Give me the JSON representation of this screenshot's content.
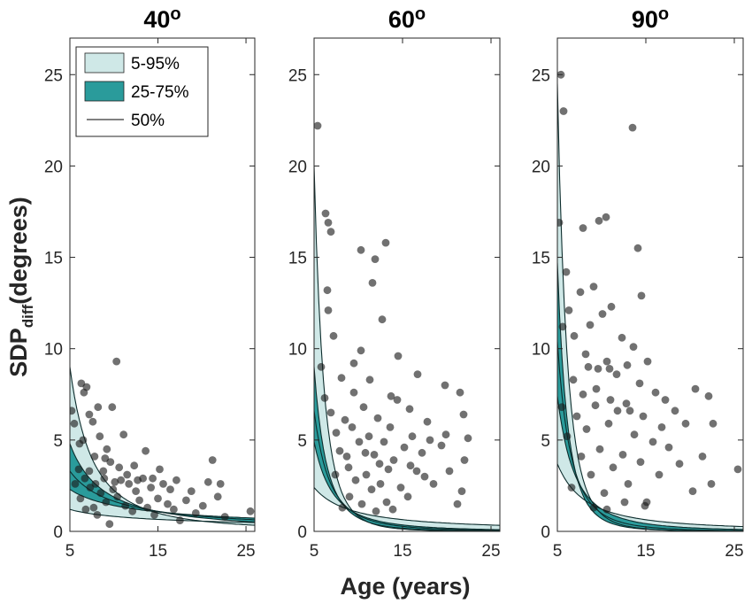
{
  "chart_data": {
    "type": "scatter",
    "xlabel": "Age (years)",
    "ylabel_main": "SDP",
    "ylabel_sub": "diff",
    "ylabel_rest": "(degrees)",
    "xlim": [
      5,
      26
    ],
    "ylim": [
      0,
      27
    ],
    "xticks": [
      5,
      15,
      25
    ],
    "yticks": [
      0,
      5,
      10,
      15,
      20,
      25
    ],
    "colors": {
      "band_outer": "#cfe8e7",
      "band_inner": "#2a9b9b",
      "median": "#0d2d2d",
      "points": "#1a1a1a"
    },
    "legend": {
      "position": "top-left of first panel",
      "entries": [
        {
          "label": "5-95%",
          "kind": "band_outer"
        },
        {
          "label": "25-75%",
          "kind": "band_inner"
        },
        {
          "label": "50%",
          "kind": "line"
        }
      ]
    },
    "panels": [
      {
        "title": "40°",
        "title_main": "40",
        "title_sup": "o",
        "curves": {
          "p5": [
            1.2,
            0.55
          ],
          "p25": [
            2.3,
            0.7
          ],
          "p50": [
            3.3,
            1.0
          ],
          "p75": [
            4.8,
            1.35
          ],
          "p95": [
            9.0,
            2.0
          ]
        },
        "points": [
          [
            5.2,
            6.6
          ],
          [
            5.5,
            5.9
          ],
          [
            6.3,
            8.1
          ],
          [
            6.6,
            7.6
          ],
          [
            6.9,
            7.9
          ],
          [
            7.2,
            6.4
          ],
          [
            7.6,
            6.0
          ],
          [
            8.2,
            6.8
          ],
          [
            9.0,
            4.0
          ],
          [
            9.8,
            6.8
          ],
          [
            10.3,
            9.3
          ],
          [
            11.1,
            5.3
          ],
          [
            6.1,
            4.8
          ],
          [
            6.5,
            5.0
          ],
          [
            7.2,
            3.3
          ],
          [
            7.8,
            4.1
          ],
          [
            8.4,
            5.2
          ],
          [
            9.2,
            4.5
          ],
          [
            9.6,
            3.8
          ],
          [
            10.6,
            3.5
          ],
          [
            12.3,
            3.6
          ],
          [
            13.6,
            4.4
          ],
          [
            15.2,
            3.4
          ],
          [
            17.1,
            2.8
          ],
          [
            20.7,
            2.7
          ],
          [
            21.2,
            3.9
          ],
          [
            22.1,
            2.6
          ],
          [
            5.6,
            2.6
          ],
          [
            6.2,
            1.8
          ],
          [
            6.8,
            1.2
          ],
          [
            7.3,
            2.4
          ],
          [
            7.7,
            1.3
          ],
          [
            8.1,
            0.9
          ],
          [
            8.5,
            2.1
          ],
          [
            8.9,
            2.9
          ],
          [
            9.1,
            1.6
          ],
          [
            9.5,
            0.4
          ],
          [
            9.9,
            2.3
          ],
          [
            10.4,
            1.9
          ],
          [
            10.8,
            2.8
          ],
          [
            11.3,
            1.4
          ],
          [
            11.7,
            2.6
          ],
          [
            12.1,
            1.1
          ],
          [
            12.5,
            2.2
          ],
          [
            12.9,
            1.7
          ],
          [
            13.3,
            2.9
          ],
          [
            13.8,
            1.3
          ],
          [
            14.2,
            2.4
          ],
          [
            14.6,
            0.9
          ],
          [
            15.0,
            1.8
          ],
          [
            15.6,
            2.6
          ],
          [
            16.1,
            1.5
          ],
          [
            16.8,
            1.2
          ],
          [
            17.5,
            0.6
          ],
          [
            18.2,
            1.7
          ],
          [
            19.3,
            1.0
          ],
          [
            20.1,
            1.4
          ],
          [
            21.8,
            1.9
          ],
          [
            22.6,
            0.8
          ],
          [
            25.5,
            1.1
          ],
          [
            6.0,
            3.4
          ],
          [
            6.7,
            2.9
          ],
          [
            7.9,
            2.6
          ],
          [
            8.8,
            3.3
          ],
          [
            10.1,
            2.7
          ],
          [
            11.5,
            3.1
          ],
          [
            12.7,
            2.8
          ],
          [
            14.4,
            2.9
          ],
          [
            16.4,
            2.3
          ],
          [
            18.8,
            2.2
          ]
        ]
      },
      {
        "title": "60°",
        "title_main": "60",
        "title_sup": "o",
        "curves": {
          "p5": [
            2.4,
            1.2
          ],
          "p25": [
            4.9,
            2.4
          ],
          "p50": [
            6.6,
            2.9
          ],
          "p75": [
            9.0,
            3.6
          ],
          "p95": [
            20.0,
            4.6
          ]
        },
        "points": [
          [
            5.4,
            22.2
          ],
          [
            6.3,
            17.4
          ],
          [
            6.6,
            16.9
          ],
          [
            6.9,
            16.4
          ],
          [
            6.5,
            13.2
          ],
          [
            6.6,
            12.1
          ],
          [
            5.8,
            9.0
          ],
          [
            7.2,
            10.7
          ],
          [
            8.1,
            8.4
          ],
          [
            9.5,
            9.2
          ],
          [
            10.3,
            9.9
          ],
          [
            11.6,
            13.6
          ],
          [
            11.9,
            14.9
          ],
          [
            12.7,
            11.6
          ],
          [
            13.1,
            15.8
          ],
          [
            10.3,
            15.4
          ],
          [
            14.5,
            9.6
          ],
          [
            16.7,
            8.6
          ],
          [
            19.8,
            8.0
          ],
          [
            21.5,
            7.6
          ],
          [
            21.9,
            6.4
          ],
          [
            6.2,
            7.3
          ],
          [
            6.9,
            6.5
          ],
          [
            7.5,
            5.4
          ],
          [
            7.9,
            4.4
          ],
          [
            8.5,
            6.1
          ],
          [
            8.9,
            3.5
          ],
          [
            9.3,
            5.7
          ],
          [
            9.7,
            2.8
          ],
          [
            10.1,
            4.9
          ],
          [
            10.6,
            6.8
          ],
          [
            10.9,
            3.1
          ],
          [
            11.2,
            5.2
          ],
          [
            11.5,
            2.3
          ],
          [
            11.8,
            4.2
          ],
          [
            12.2,
            6.2
          ],
          [
            12.5,
            2.6
          ],
          [
            12.9,
            4.9
          ],
          [
            13.2,
            1.6
          ],
          [
            13.6,
            5.7
          ],
          [
            14.0,
            3.9
          ],
          [
            14.4,
            7.2
          ],
          [
            14.8,
            2.4
          ],
          [
            15.2,
            4.6
          ],
          [
            15.6,
            1.9
          ],
          [
            16.1,
            5.2
          ],
          [
            16.6,
            3.3
          ],
          [
            17.2,
            4.3
          ],
          [
            17.8,
            6.0
          ],
          [
            18.5,
            2.6
          ],
          [
            19.4,
            4.7
          ],
          [
            20.3,
            3.3
          ],
          [
            21.2,
            1.5
          ],
          [
            22.0,
            3.9
          ],
          [
            22.4,
            5.1
          ],
          [
            8.2,
            1.3
          ],
          [
            9.0,
            1.9
          ],
          [
            10.4,
            1.5
          ],
          [
            12.0,
            1.1
          ],
          [
            13.9,
            1.2
          ],
          [
            7.4,
            3.1
          ],
          [
            8.7,
            4.1
          ],
          [
            10.8,
            4.3
          ],
          [
            12.4,
            3.7
          ],
          [
            13.4,
            3.4
          ],
          [
            15.9,
            3.6
          ],
          [
            17.5,
            3.0
          ],
          [
            19.9,
            5.3
          ],
          [
            21.7,
            2.2
          ],
          [
            9.5,
            7.6
          ],
          [
            11.3,
            8.3
          ],
          [
            13.7,
            7.4
          ],
          [
            15.8,
            6.7
          ],
          [
            18.1,
            5.0
          ]
        ]
      },
      {
        "title": "90°",
        "title_main": "90",
        "title_sup": "o",
        "curves": {
          "p5": [
            3.7,
            1.6
          ],
          "p25": [
            7.4,
            2.6
          ],
          "p50": [
            10.4,
            3.4
          ],
          "p75": [
            14.7,
            4.4
          ],
          "p95": [
            24.5,
            4.7
          ]
        },
        "points": [
          [
            5.4,
            25.0
          ],
          [
            5.7,
            23.0
          ],
          [
            5.2,
            16.9
          ],
          [
            6.0,
            14.2
          ],
          [
            7.9,
            16.6
          ],
          [
            9.7,
            17.0
          ],
          [
            10.5,
            17.2
          ],
          [
            13.5,
            22.1
          ],
          [
            14.1,
            15.5
          ],
          [
            14.5,
            12.9
          ],
          [
            5.6,
            11.2
          ],
          [
            6.3,
            12.1
          ],
          [
            6.9,
            10.7
          ],
          [
            7.6,
            13.1
          ],
          [
            8.2,
            9.7
          ],
          [
            8.7,
            11.3
          ],
          [
            9.1,
            13.4
          ],
          [
            9.6,
            8.9
          ],
          [
            10.1,
            11.9
          ],
          [
            10.6,
            9.3
          ],
          [
            11.1,
            12.3
          ],
          [
            11.7,
            8.6
          ],
          [
            12.3,
            10.6
          ],
          [
            12.9,
            9.1
          ],
          [
            13.6,
            10.1
          ],
          [
            14.3,
            8.1
          ],
          [
            15.2,
            9.3
          ],
          [
            16.1,
            7.6
          ],
          [
            17.2,
            7.2
          ],
          [
            18.3,
            6.6
          ],
          [
            20.6,
            7.8
          ],
          [
            22.1,
            7.4
          ],
          [
            22.6,
            5.9
          ],
          [
            5.5,
            6.8
          ],
          [
            6.1,
            5.2
          ],
          [
            6.6,
            2.4
          ],
          [
            7.2,
            6.3
          ],
          [
            7.7,
            4.1
          ],
          [
            8.3,
            5.6
          ],
          [
            8.8,
            3.1
          ],
          [
            9.3,
            6.9
          ],
          [
            9.8,
            4.5
          ],
          [
            10.3,
            2.1
          ],
          [
            10.8,
            5.9
          ],
          [
            11.3,
            3.5
          ],
          [
            11.8,
            6.6
          ],
          [
            12.4,
            4.2
          ],
          [
            13.0,
            2.6
          ],
          [
            13.7,
            5.3
          ],
          [
            14.4,
            3.8
          ],
          [
            15.1,
            1.6
          ],
          [
            15.8,
            4.9
          ],
          [
            16.5,
            3.1
          ],
          [
            17.6,
            4.6
          ],
          [
            18.8,
            3.7
          ],
          [
            20.3,
            2.2
          ],
          [
            21.4,
            4.1
          ],
          [
            22.4,
            2.6
          ],
          [
            25.4,
            3.4
          ],
          [
            9.1,
            1.3
          ],
          [
            10.6,
            1.2
          ],
          [
            12.6,
            1.6
          ],
          [
            14.9,
            1.4
          ],
          [
            6.8,
            8.3
          ],
          [
            7.9,
            7.5
          ],
          [
            9.4,
            7.8
          ],
          [
            11.0,
            7.2
          ],
          [
            12.8,
            7.0
          ],
          [
            14.7,
            6.3
          ],
          [
            16.8,
            5.7
          ],
          [
            19.5,
            5.9
          ],
          [
            8.5,
            9.0
          ],
          [
            10.9,
            8.9
          ],
          [
            13.2,
            6.6
          ]
        ]
      }
    ]
  }
}
